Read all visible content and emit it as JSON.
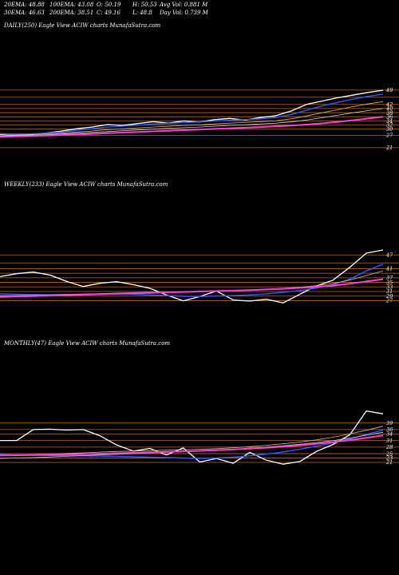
{
  "header": {
    "ema20": "20EMA: 48.88",
    "ema100": "100EMA: 43.08",
    "open": "O: 50.19",
    "high": "H: 50.53",
    "avg_vol": "Avg Vol: 0.881 M",
    "ema30": "30EMA: 46.63",
    "ema200": "200EMA: 38.51",
    "close": "C: 49.16",
    "low": "L: 48.8",
    "day_vol": "Day Vol: 0.739 M"
  },
  "colors": {
    "background": "#000000",
    "level_lines": "#c46a1c",
    "price": "#ffffff",
    "ma_blue": "#2f5bff",
    "ma_magenta": "#ff3fd8",
    "ma_tan": "#d9b98a",
    "ma_grey": "#cfcfcf"
  },
  "chart_data": [
    {
      "type": "line",
      "label": "DAILY(250) Eagle  View  ACIW charts MunafaSutra.com",
      "y_ticks": [
        "49",
        "42",
        "40",
        "38",
        "36",
        "34",
        "32",
        "30",
        "27",
        "21"
      ],
      "ylim": [
        19,
        52
      ],
      "levels": [
        49,
        45.5,
        42,
        40,
        38,
        36,
        34,
        32,
        30,
        27,
        21
      ],
      "x": [
        0,
        10,
        20,
        30,
        40,
        50,
        60,
        70,
        80,
        90,
        100,
        110,
        120,
        130,
        140,
        150,
        160,
        170,
        180,
        190,
        200,
        210,
        220,
        230,
        240,
        250
      ],
      "series": [
        {
          "name": "",
          "style": "price",
          "values": [
            27.5,
            26.8,
            27.3,
            28.1,
            29.0,
            30.2,
            31.0,
            32.2,
            31.8,
            32.7,
            33.6,
            32.9,
            34.0,
            33.4,
            34.6,
            35.2,
            34.4,
            35.6,
            36.5,
            38.8,
            42.0,
            43.6,
            45.2,
            46.5,
            47.8,
            48.9
          ]
        },
        {
          "name": "",
          "style": "blue",
          "values": [
            27.8,
            27.6,
            27.7,
            28.0,
            28.6,
            29.4,
            30.2,
            31.0,
            31.4,
            31.9,
            32.5,
            32.8,
            33.2,
            33.5,
            33.9,
            34.3,
            34.6,
            35.0,
            35.7,
            37.0,
            39.2,
            41.2,
            43.0,
            44.5,
            45.9,
            47.0
          ]
        },
        {
          "name": "",
          "style": "tan",
          "values": [
            27.2,
            27.2,
            27.4,
            27.7,
            28.1,
            28.6,
            29.1,
            29.7,
            30.1,
            30.6,
            31.0,
            31.4,
            31.8,
            32.1,
            32.5,
            32.9,
            33.2,
            33.6,
            34.1,
            35.0,
            36.4,
            37.9,
            39.4,
            40.9,
            42.2,
            43.4
          ]
        },
        {
          "name": "",
          "style": "grey",
          "values": [
            26.6,
            26.8,
            27.0,
            27.3,
            27.6,
            28.0,
            28.4,
            28.8,
            29.2,
            29.6,
            30.0,
            30.4,
            30.7,
            31.0,
            31.4,
            31.8,
            32.1,
            32.5,
            32.9,
            33.5,
            34.4,
            35.5,
            36.7,
            37.9,
            39.0,
            40.0
          ]
        },
        {
          "name": "",
          "style": "magenta",
          "values": [
            26.2,
            26.4,
            26.6,
            26.9,
            27.1,
            27.4,
            27.7,
            28.0,
            28.3,
            28.6,
            28.9,
            29.2,
            29.5,
            29.8,
            30.1,
            30.4,
            30.7,
            31.0,
            31.3,
            31.7,
            32.2,
            32.8,
            33.5,
            34.3,
            35.1,
            36.0
          ]
        }
      ]
    },
    {
      "type": "line",
      "label": "WEEKLY(233) Eagle  View  ACIW charts MunafaSutra.com",
      "y_ticks": [
        "47",
        "41",
        "37",
        "35",
        "33",
        "31",
        "29",
        "27"
      ],
      "ylim": [
        24,
        52
      ],
      "levels": [
        47,
        43.5,
        41,
        39,
        37,
        35,
        33,
        31,
        29,
        27
      ],
      "x": [
        0,
        10,
        20,
        30,
        40,
        50,
        60,
        70,
        80,
        90,
        100,
        110,
        120,
        130,
        140,
        150,
        160,
        170,
        180,
        190,
        200,
        210,
        220,
        230
      ],
      "series": [
        {
          "name": "",
          "style": "price",
          "values": [
            37.5,
            38.8,
            39.5,
            38.2,
            35.4,
            33.2,
            34.6,
            35.3,
            34.0,
            32.4,
            29.5,
            26.9,
            28.8,
            31.2,
            27.3,
            26.8,
            27.6,
            26.0,
            29.8,
            33.4,
            36.0,
            41.6,
            47.8,
            49.2
          ]
        },
        {
          "name": "",
          "style": "blue",
          "values": [
            30.0,
            29.8,
            29.7,
            29.6,
            29.7,
            29.8,
            29.9,
            30.0,
            29.8,
            29.5,
            29.2,
            28.9,
            28.8,
            29.0,
            29.2,
            29.5,
            30.0,
            30.6,
            31.4,
            32.5,
            34.0,
            36.4,
            40.0,
            43.0
          ]
        },
        {
          "name": "",
          "style": "tan",
          "values": [
            29.2,
            29.3,
            29.4,
            29.5,
            29.7,
            29.9,
            30.1,
            30.3,
            30.5,
            30.7,
            30.8,
            30.9,
            31.0,
            31.2,
            31.4,
            31.7,
            32.0,
            32.4,
            32.9,
            33.6,
            34.5,
            36.0,
            38.0,
            40.0
          ]
        },
        {
          "name": "",
          "style": "magenta",
          "values": [
            28.6,
            28.8,
            29.0,
            29.2,
            29.4,
            29.6,
            29.8,
            30.0,
            30.2,
            30.4,
            30.6,
            30.8,
            31.0,
            31.2,
            31.4,
            31.6,
            31.9,
            32.2,
            32.6,
            33.0,
            33.6,
            34.4,
            35.4,
            36.4
          ]
        }
      ]
    },
    {
      "type": "line",
      "label": "MONTHLY(47) Eagle  View  ACIW charts MunafaSutra.com",
      "y_ticks": [
        "39",
        "36",
        "34",
        "31",
        "28",
        "25",
        "23",
        "21"
      ],
      "ylim": [
        17,
        48
      ],
      "levels": [
        39,
        36,
        34,
        31,
        28,
        25,
        23,
        21
      ],
      "x": [
        0,
        2,
        4,
        6,
        8,
        10,
        12,
        14,
        16,
        18,
        20,
        22,
        24,
        26,
        28,
        30,
        32,
        34,
        36,
        38,
        40,
        42,
        44,
        46
      ],
      "series": [
        {
          "name": "",
          "style": "price",
          "values": [
            31.0,
            31.0,
            36.0,
            36.2,
            35.8,
            36.0,
            33.2,
            29.0,
            26.2,
            27.4,
            24.4,
            27.6,
            21.2,
            22.8,
            20.6,
            25.6,
            22.0,
            20.2,
            21.4,
            26.0,
            29.2,
            33.6,
            44.5,
            43.2
          ]
        },
        {
          "name": "",
          "style": "blue",
          "values": [
            24.6,
            24.4,
            24.3,
            24.2,
            24.1,
            24.0,
            23.9,
            23.8,
            23.6,
            23.4,
            23.2,
            23.0,
            22.8,
            23.0,
            23.4,
            24.0,
            24.8,
            25.8,
            27.0,
            28.4,
            30.0,
            31.8,
            33.8,
            35.8
          ]
        },
        {
          "name": "",
          "style": "tan",
          "values": [
            24.0,
            24.2,
            24.5,
            24.8,
            25.1,
            25.4,
            25.7,
            26.0,
            26.2,
            26.4,
            26.6,
            26.8,
            27.0,
            27.3,
            27.7,
            28.2,
            28.8,
            29.5,
            30.3,
            31.3,
            32.5,
            34.0,
            35.7,
            37.5
          ]
        },
        {
          "name": "",
          "style": "grey",
          "values": [
            22.8,
            23.0,
            23.2,
            23.5,
            23.8,
            24.1,
            24.4,
            24.7,
            25.0,
            25.3,
            25.6,
            25.9,
            26.2,
            26.6,
            27.0,
            27.5,
            28.0,
            28.6,
            29.3,
            30.1,
            31.0,
            32.1,
            33.4,
            34.8
          ]
        },
        {
          "name": "",
          "style": "magenta",
          "values": [
            24.2,
            24.3,
            24.4,
            24.5,
            24.6,
            24.8,
            25.0,
            25.2,
            25.4,
            25.6,
            25.8,
            26.0,
            26.3,
            26.6,
            26.9,
            27.3,
            27.7,
            28.2,
            28.8,
            29.5,
            30.3,
            31.2,
            32.2,
            33.3
          ]
        }
      ]
    }
  ]
}
